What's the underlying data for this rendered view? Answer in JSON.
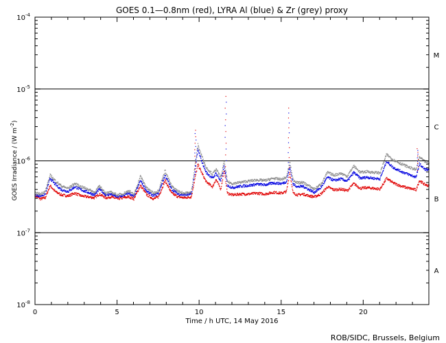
{
  "chart_data": {
    "type": "scatter",
    "title": "GOES 0.1—0.8nm (red), LYRA Al (blue) & Zr (grey) proxy",
    "xlabel": "Time / h UTC, 14 May 2016",
    "ylabel_text": "GOES Irradiance / (W m",
    "ylabel_exp": "-2",
    "ylabel_close": ")",
    "credit": "ROB/SIDC, Brussels, Belgium",
    "xlim": [
      0,
      24
    ],
    "ylim": [
      1e-08,
      0.0001
    ],
    "yscale": "log",
    "x_ticks": [
      {
        "value": 0,
        "label": "0"
      },
      {
        "value": 5,
        "label": "5"
      },
      {
        "value": 10,
        "label": "10"
      },
      {
        "value": 15,
        "label": "15"
      },
      {
        "value": 20,
        "label": "20"
      }
    ],
    "y_ticks": [
      {
        "value": 1e-08,
        "base": "10",
        "exp": "-8"
      },
      {
        "value": 1e-07,
        "base": "10",
        "exp": "-7"
      },
      {
        "value": 1e-06,
        "base": "10",
        "exp": "-6"
      },
      {
        "value": 1e-05,
        "base": "10",
        "exp": "-5"
      },
      {
        "value": 0.0001,
        "base": "10",
        "exp": "-4"
      }
    ],
    "class_lines": [
      1e-07,
      1e-06,
      1e-05
    ],
    "class_labels": [
      {
        "label": "A",
        "value": 3e-08
      },
      {
        "label": "B",
        "value": 3e-07
      },
      {
        "label": "C",
        "value": 3e-06
      },
      {
        "label": "M",
        "value": 3e-05
      }
    ],
    "series": [
      {
        "color": "#e00000",
        "points": [
          [
            0.0,
            3.3e-07
          ],
          [
            0.3,
            3e-07
          ],
          [
            0.6,
            3.1e-07
          ],
          [
            0.9,
            4.6e-07
          ],
          [
            1.2,
            3.8e-07
          ],
          [
            1.6,
            3.4e-07
          ],
          [
            2.0,
            3.3e-07
          ],
          [
            2.4,
            3.6e-07
          ],
          [
            2.8,
            3.3e-07
          ],
          [
            3.2,
            3.2e-07
          ],
          [
            3.6,
            3.1e-07
          ],
          [
            3.9,
            3.5e-07
          ],
          [
            4.3,
            3.1e-07
          ],
          [
            4.6,
            3.2e-07
          ],
          [
            5.0,
            3e-07
          ],
          [
            5.3,
            3.1e-07
          ],
          [
            5.7,
            3.2e-07
          ],
          [
            6.0,
            3e-07
          ],
          [
            6.4,
            4.6e-07
          ],
          [
            6.8,
            3.4e-07
          ],
          [
            7.2,
            3e-07
          ],
          [
            7.5,
            3.2e-07
          ],
          [
            7.9,
            5.4e-07
          ],
          [
            8.3,
            3.6e-07
          ],
          [
            8.7,
            3.2e-07
          ],
          [
            9.1,
            3.1e-07
          ],
          [
            9.5,
            3.2e-07
          ],
          [
            9.7,
            5.5e-07
          ],
          [
            9.9,
            9e-07
          ],
          [
            10.1,
            7.2e-07
          ],
          [
            10.4,
            5.2e-07
          ],
          [
            10.8,
            4.4e-07
          ],
          [
            11.0,
            5.6e-07
          ],
          [
            11.3,
            4.1e-07
          ],
          [
            11.5,
            7.5e-07
          ],
          [
            11.7,
            3.6e-07
          ],
          [
            12.0,
            3.4e-07
          ],
          [
            12.5,
            3.5e-07
          ],
          [
            13.0,
            3.5e-07
          ],
          [
            13.5,
            3.6e-07
          ],
          [
            14.0,
            3.5e-07
          ],
          [
            14.5,
            3.7e-07
          ],
          [
            15.0,
            3.6e-07
          ],
          [
            15.3,
            3.8e-07
          ],
          [
            15.5,
            7e-07
          ],
          [
            15.7,
            3.6e-07
          ],
          [
            16.0,
            3.4e-07
          ],
          [
            16.3,
            3.5e-07
          ],
          [
            16.7,
            3.3e-07
          ],
          [
            17.0,
            3.2e-07
          ],
          [
            17.4,
            3.5e-07
          ],
          [
            17.8,
            4.4e-07
          ],
          [
            18.2,
            4e-07
          ],
          [
            18.6,
            4.1e-07
          ],
          [
            19.0,
            3.9e-07
          ],
          [
            19.4,
            4.9e-07
          ],
          [
            19.8,
            4.2e-07
          ],
          [
            20.2,
            4.3e-07
          ],
          [
            20.6,
            4.2e-07
          ],
          [
            21.0,
            4.1e-07
          ],
          [
            21.4,
            5.8e-07
          ],
          [
            21.8,
            5e-07
          ],
          [
            22.3,
            4.5e-07
          ],
          [
            22.8,
            4.2e-07
          ],
          [
            23.2,
            4e-07
          ],
          [
            23.4,
            5.4e-07
          ],
          [
            23.7,
            4.8e-07
          ],
          [
            24.0,
            4.5e-07
          ]
        ]
      },
      {
        "color": "#0000e0",
        "points": [
          [
            0.0,
            3.4e-07
          ],
          [
            0.3,
            3.3e-07
          ],
          [
            0.6,
            3.5e-07
          ],
          [
            0.9,
            5.8e-07
          ],
          [
            1.2,
            4.8e-07
          ],
          [
            1.6,
            4e-07
          ],
          [
            2.0,
            3.8e-07
          ],
          [
            2.4,
            4.4e-07
          ],
          [
            2.8,
            4e-07
          ],
          [
            3.2,
            3.7e-07
          ],
          [
            3.6,
            3.4e-07
          ],
          [
            3.9,
            4.1e-07
          ],
          [
            4.3,
            3.4e-07
          ],
          [
            4.6,
            3.5e-07
          ],
          [
            5.0,
            3.2e-07
          ],
          [
            5.3,
            3.3e-07
          ],
          [
            5.7,
            3.6e-07
          ],
          [
            6.0,
            3.2e-07
          ],
          [
            6.4,
            5.4e-07
          ],
          [
            6.8,
            3.8e-07
          ],
          [
            7.2,
            3.3e-07
          ],
          [
            7.5,
            3.6e-07
          ],
          [
            7.9,
            6.4e-07
          ],
          [
            8.3,
            4.1e-07
          ],
          [
            8.7,
            3.5e-07
          ],
          [
            9.1,
            3.4e-07
          ],
          [
            9.5,
            3.5e-07
          ],
          [
            9.7,
            6.8e-07
          ],
          [
            9.9,
            1.45e-06
          ],
          [
            10.1,
            1.05e-06
          ],
          [
            10.4,
            7e-07
          ],
          [
            10.8,
            5.8e-07
          ],
          [
            11.0,
            6.8e-07
          ],
          [
            11.3,
            5.3e-07
          ],
          [
            11.5,
            8.5e-07
          ],
          [
            11.7,
            4.6e-07
          ],
          [
            12.0,
            4.3e-07
          ],
          [
            12.5,
            4.5e-07
          ],
          [
            13.0,
            4.6e-07
          ],
          [
            13.5,
            4.8e-07
          ],
          [
            14.0,
            4.7e-07
          ],
          [
            14.5,
            5e-07
          ],
          [
            15.0,
            4.9e-07
          ],
          [
            15.3,
            5.2e-07
          ],
          [
            15.5,
            8.5e-07
          ],
          [
            15.7,
            4.8e-07
          ],
          [
            16.0,
            4.4e-07
          ],
          [
            16.3,
            4.5e-07
          ],
          [
            16.7,
            4e-07
          ],
          [
            17.0,
            3.7e-07
          ],
          [
            17.4,
            4.3e-07
          ],
          [
            17.8,
            6e-07
          ],
          [
            18.2,
            5.4e-07
          ],
          [
            18.6,
            5.7e-07
          ],
          [
            19.0,
            5.3e-07
          ],
          [
            19.4,
            7e-07
          ],
          [
            19.8,
            5.8e-07
          ],
          [
            20.2,
            6e-07
          ],
          [
            20.6,
            5.8e-07
          ],
          [
            21.0,
            5.7e-07
          ],
          [
            21.4,
            1e-06
          ],
          [
            21.8,
            8.2e-07
          ],
          [
            22.3,
            7.2e-07
          ],
          [
            22.8,
            6.5e-07
          ],
          [
            23.2,
            6e-07
          ],
          [
            23.4,
            9.2e-07
          ],
          [
            23.7,
            7.8e-07
          ],
          [
            24.0,
            7.5e-07
          ]
        ]
      },
      {
        "color": "#8c8c8c",
        "points": [
          [
            0.0,
            3.6e-07
          ],
          [
            0.3,
            3.5e-07
          ],
          [
            0.6,
            3.8e-07
          ],
          [
            0.9,
            6.4e-07
          ],
          [
            1.2,
            5.4e-07
          ],
          [
            1.6,
            4.5e-07
          ],
          [
            2.0,
            4.2e-07
          ],
          [
            2.4,
            4.9e-07
          ],
          [
            2.8,
            4.4e-07
          ],
          [
            3.2,
            4.1e-07
          ],
          [
            3.6,
            3.7e-07
          ],
          [
            3.9,
            4.5e-07
          ],
          [
            4.3,
            3.6e-07
          ],
          [
            4.6,
            3.7e-07
          ],
          [
            5.0,
            3.4e-07
          ],
          [
            5.3,
            3.5e-07
          ],
          [
            5.7,
            3.9e-07
          ],
          [
            6.0,
            3.4e-07
          ],
          [
            6.4,
            6.2e-07
          ],
          [
            6.8,
            4.2e-07
          ],
          [
            7.2,
            3.6e-07
          ],
          [
            7.5,
            3.9e-07
          ],
          [
            7.9,
            7.4e-07
          ],
          [
            8.3,
            4.5e-07
          ],
          [
            8.7,
            3.8e-07
          ],
          [
            9.1,
            3.6e-07
          ],
          [
            9.5,
            3.7e-07
          ],
          [
            9.7,
            8e-07
          ],
          [
            9.9,
            1.7e-06
          ],
          [
            10.1,
            1.25e-06
          ],
          [
            10.4,
            8.2e-07
          ],
          [
            10.8,
            6.6e-07
          ],
          [
            11.0,
            7.8e-07
          ],
          [
            11.3,
            6e-07
          ],
          [
            11.5,
            9.8e-07
          ],
          [
            11.7,
            5.2e-07
          ],
          [
            12.0,
            4.9e-07
          ],
          [
            12.5,
            5.1e-07
          ],
          [
            13.0,
            5.3e-07
          ],
          [
            13.5,
            5.5e-07
          ],
          [
            14.0,
            5.4e-07
          ],
          [
            14.5,
            5.8e-07
          ],
          [
            15.0,
            5.6e-07
          ],
          [
            15.3,
            6e-07
          ],
          [
            15.5,
            9.8e-07
          ],
          [
            15.7,
            5.5e-07
          ],
          [
            16.0,
            5e-07
          ],
          [
            16.3,
            5.1e-07
          ],
          [
            16.7,
            4.5e-07
          ],
          [
            17.0,
            4.1e-07
          ],
          [
            17.4,
            4.8e-07
          ],
          [
            17.8,
            7e-07
          ],
          [
            18.2,
            6.4e-07
          ],
          [
            18.6,
            6.8e-07
          ],
          [
            19.0,
            6.2e-07
          ],
          [
            19.4,
            8.6e-07
          ],
          [
            19.8,
            7e-07
          ],
          [
            20.2,
            7.2e-07
          ],
          [
            20.6,
            7e-07
          ],
          [
            21.0,
            6.9e-07
          ],
          [
            21.4,
            1.25e-06
          ],
          [
            21.8,
            1.05e-06
          ],
          [
            22.3,
            9.2e-07
          ],
          [
            22.8,
            8.2e-07
          ],
          [
            23.2,
            7.6e-07
          ],
          [
            23.4,
            1.15e-06
          ],
          [
            23.7,
            1e-06
          ],
          [
            24.0,
            9.5e-07
          ]
        ]
      }
    ]
  }
}
